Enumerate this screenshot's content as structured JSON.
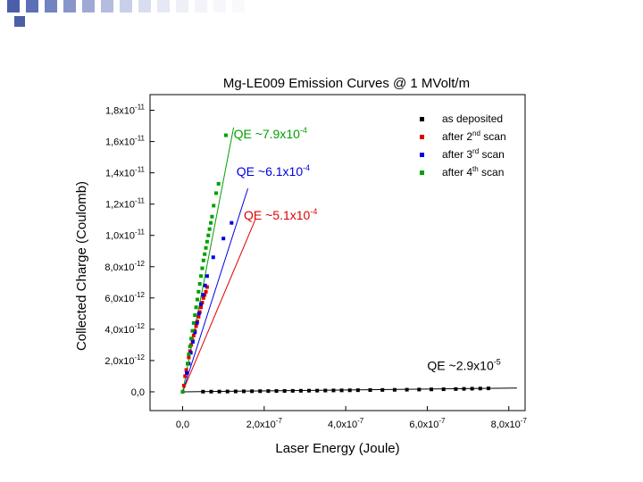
{
  "slide": {
    "header_squares": [
      "#4b5fa8",
      "#5c70b6",
      "#7283c2",
      "#8896cc",
      "#9ea9d6",
      "#b4bde0",
      "#c8cfe9",
      "#d9deef",
      "#e6e9f4",
      "#eef0f7",
      "#f3f4f9",
      "#f6f7fb",
      "#f8f9fc"
    ],
    "accent_square": "#4b5fa8"
  },
  "chart_data": {
    "type": "scatter",
    "title": "Mg-LE009 Emission Curves @ 1 MVolt/m",
    "xlabel": "Laser Energy (Joule)",
    "ylabel": "Collected Charge (Coulomb)",
    "xlim": [
      -8e-08,
      8.4e-07
    ],
    "ylim": [
      -1.2e-12,
      1.9e-11
    ],
    "x_ticks": [
      {
        "value": 0,
        "mant": "0,0",
        "exp": ""
      },
      {
        "value": 2e-07,
        "mant": "2,0x10",
        "exp": "-7"
      },
      {
        "value": 4e-07,
        "mant": "4,0x10",
        "exp": "-7"
      },
      {
        "value": 6e-07,
        "mant": "6,0x10",
        "exp": "-7"
      },
      {
        "value": 8e-07,
        "mant": "8,0x10",
        "exp": "-7"
      }
    ],
    "y_ticks": [
      {
        "value": 0,
        "mant": "0,0",
        "exp": ""
      },
      {
        "value": 2e-12,
        "mant": "2,0x10",
        "exp": "-12"
      },
      {
        "value": 4e-12,
        "mant": "4,0x10",
        "exp": "-12"
      },
      {
        "value": 6e-12,
        "mant": "6,0x10",
        "exp": "-12"
      },
      {
        "value": 8e-12,
        "mant": "8,0x10",
        "exp": "-12"
      },
      {
        "value": 1e-11,
        "mant": "1,0x10",
        "exp": "-11"
      },
      {
        "value": 1.2e-11,
        "mant": "1,2x10",
        "exp": "-11"
      },
      {
        "value": 1.4e-11,
        "mant": "1,4x10",
        "exp": "-11"
      },
      {
        "value": 1.6e-11,
        "mant": "1,6x10",
        "exp": "-11"
      },
      {
        "value": 1.8e-11,
        "mant": "1,8x10",
        "exp": "-11"
      }
    ],
    "series": [
      {
        "name": "as deposited",
        "color": "#000000",
        "fit": {
          "x": [
            0,
            8.2e-07
          ],
          "y": [
            0,
            2.4e-13
          ]
        },
        "points": [
          [
            0.0,
            0.0
          ],
          [
            5e-08,
            1e-14
          ],
          [
            7e-08,
            1.3e-14
          ],
          [
            9e-08,
            1.6e-14
          ],
          [
            1.1e-07,
            2.2e-14
          ],
          [
            1.3e-07,
            2.6e-14
          ],
          [
            1.5e-07,
            3.2e-14
          ],
          [
            1.7e-07,
            3.8e-14
          ],
          [
            1.9e-07,
            4.2e-14
          ],
          [
            2.1e-07,
            4.8e-14
          ],
          [
            2.3e-07,
            5.2e-14
          ],
          [
            2.5e-07,
            5.6e-14
          ],
          [
            2.7e-07,
            6.2e-14
          ],
          [
            2.9e-07,
            6.6e-14
          ],
          [
            3.1e-07,
            7.2e-14
          ],
          [
            3.3e-07,
            7.6e-14
          ],
          [
            3.5e-07,
            8.2e-14
          ],
          [
            3.7e-07,
            8.8e-14
          ],
          [
            3.9e-07,
            9.2e-14
          ],
          [
            4.1e-07,
            9.8e-14
          ],
          [
            4.3e-07,
            1.04e-13
          ],
          [
            4.6e-07,
            1.12e-13
          ],
          [
            4.9e-07,
            1.2e-13
          ],
          [
            5.2e-07,
            1.28e-13
          ],
          [
            5.5e-07,
            1.36e-13
          ],
          [
            5.8e-07,
            1.46e-13
          ],
          [
            6.1e-07,
            1.56e-13
          ],
          [
            6.4e-07,
            1.66e-13
          ],
          [
            6.7e-07,
            1.78e-13
          ],
          [
            6.9e-07,
            1.9e-13
          ],
          [
            7.1e-07,
            2e-13
          ],
          [
            7.3e-07,
            2.1e-13
          ],
          [
            7.5e-07,
            2.2e-13
          ]
        ]
      },
      {
        "name": "after 2nd scan",
        "name_base": "after 2",
        "name_sup": "nd",
        "name_tail": " scan",
        "color": "#e00000",
        "fit": {
          "x": [
            0,
            1.78e-07
          ],
          "y": [
            0,
            1.1e-11
          ]
        },
        "points": [
          [
            0.0,
            0.0
          ],
          [
            3e-09,
            4e-13
          ],
          [
            6e-09,
            1e-12
          ],
          [
            9e-09,
            1.4e-12
          ],
          [
            1.2e-08,
            1.8e-12
          ],
          [
            1.5e-08,
            2.2e-12
          ],
          [
            1.8e-08,
            2.6e-12
          ],
          [
            2.1e-08,
            3e-12
          ],
          [
            2.4e-08,
            3.3e-12
          ],
          [
            2.7e-08,
            3.6e-12
          ],
          [
            3e-08,
            3.9e-12
          ],
          [
            3.3e-08,
            4.2e-12
          ],
          [
            3.6e-08,
            4.5e-12
          ],
          [
            3.9e-08,
            4.8e-12
          ],
          [
            4.2e-08,
            5.1e-12
          ],
          [
            4.5e-08,
            5.4e-12
          ],
          [
            4.8e-08,
            5.7e-12
          ],
          [
            5.1e-08,
            6e-12
          ],
          [
            5.4e-08,
            6.2e-12
          ],
          [
            5.7e-08,
            6.4e-12
          ],
          [
            6e-08,
            6.7e-12
          ]
        ]
      },
      {
        "name": "after 3rd scan",
        "name_base": "after 3",
        "name_sup": "rd",
        "name_tail": " scan",
        "color": "#0000e0",
        "fit": {
          "x": [
            0,
            1.6e-07
          ],
          "y": [
            0,
            1.3e-11
          ]
        },
        "points": [
          [
            0.0,
            0.0
          ],
          [
            1e-08,
            1.2e-12
          ],
          [
            1.5e-08,
            1.8e-12
          ],
          [
            2e-08,
            2.5e-12
          ],
          [
            2.5e-08,
            3.2e-12
          ],
          [
            3e-08,
            3.8e-12
          ],
          [
            3.5e-08,
            4.4e-12
          ],
          [
            4e-08,
            5e-12
          ],
          [
            4.5e-08,
            5.6e-12
          ],
          [
            5e-08,
            6.2e-12
          ],
          [
            5.5e-08,
            6.8e-12
          ],
          [
            6e-08,
            7.4e-12
          ],
          [
            7.5e-08,
            8.6e-12
          ],
          [
            1e-07,
            9.8e-12
          ],
          [
            1.2e-07,
            1.08e-11
          ]
        ]
      },
      {
        "name": "after 4th scan",
        "name_base": "after 4",
        "name_sup": "th",
        "name_tail": " scan",
        "color": "#00a000",
        "fit": {
          "x": [
            0,
            1.25e-07
          ],
          "y": [
            0,
            1.69e-11
          ]
        },
        "points": [
          [
            0.0,
            0.0
          ],
          [
            1.2e-08,
            1.8e-12
          ],
          [
            1.5e-08,
            2.4e-12
          ],
          [
            1.8e-08,
            2.9e-12
          ],
          [
            2.1e-08,
            3.4e-12
          ],
          [
            2.4e-08,
            3.9e-12
          ],
          [
            2.7e-08,
            4.4e-12
          ],
          [
            3e-08,
            4.9e-12
          ],
          [
            3.3e-08,
            5.4e-12
          ],
          [
            3.6e-08,
            5.9e-12
          ],
          [
            3.9e-08,
            6.4e-12
          ],
          [
            4.2e-08,
            6.9e-12
          ],
          [
            4.5e-08,
            7.4e-12
          ],
          [
            4.8e-08,
            7.9e-12
          ],
          [
            5.1e-08,
            8.4e-12
          ],
          [
            5.4e-08,
            8.8e-12
          ],
          [
            5.7e-08,
            9.2e-12
          ],
          [
            6e-08,
            9.6e-12
          ],
          [
            6.3e-08,
            1e-11
          ],
          [
            6.6e-08,
            1.04e-11
          ],
          [
            6.9e-08,
            1.08e-11
          ],
          [
            7.2e-08,
            1.12e-11
          ],
          [
            7.6e-08,
            1.19e-11
          ],
          [
            8.2e-08,
            1.27e-11
          ],
          [
            8.8e-08,
            1.33e-11
          ],
          [
            1.06e-07,
            1.64e-11
          ]
        ]
      }
    ],
    "annotations": [
      {
        "mant": "QE ~7.9x10",
        "exp": "-4",
        "color": "#00a000",
        "x": 1.25e-07,
        "y": 1.62e-11
      },
      {
        "mant": "QE ~6.1x10",
        "exp": "-4",
        "color": "#0000e0",
        "x": 1.32e-07,
        "y": 1.38e-11
      },
      {
        "mant": "QE ~5.1x10",
        "exp": "-4",
        "color": "#e00000",
        "x": 1.5e-07,
        "y": 1.1e-11
      },
      {
        "mant": "QE ~2.9x10",
        "exp": "-5",
        "color": "#000000",
        "x": 6e-07,
        "y": 1.4e-12
      }
    ],
    "legend_position": "top-right",
    "grid": false
  }
}
